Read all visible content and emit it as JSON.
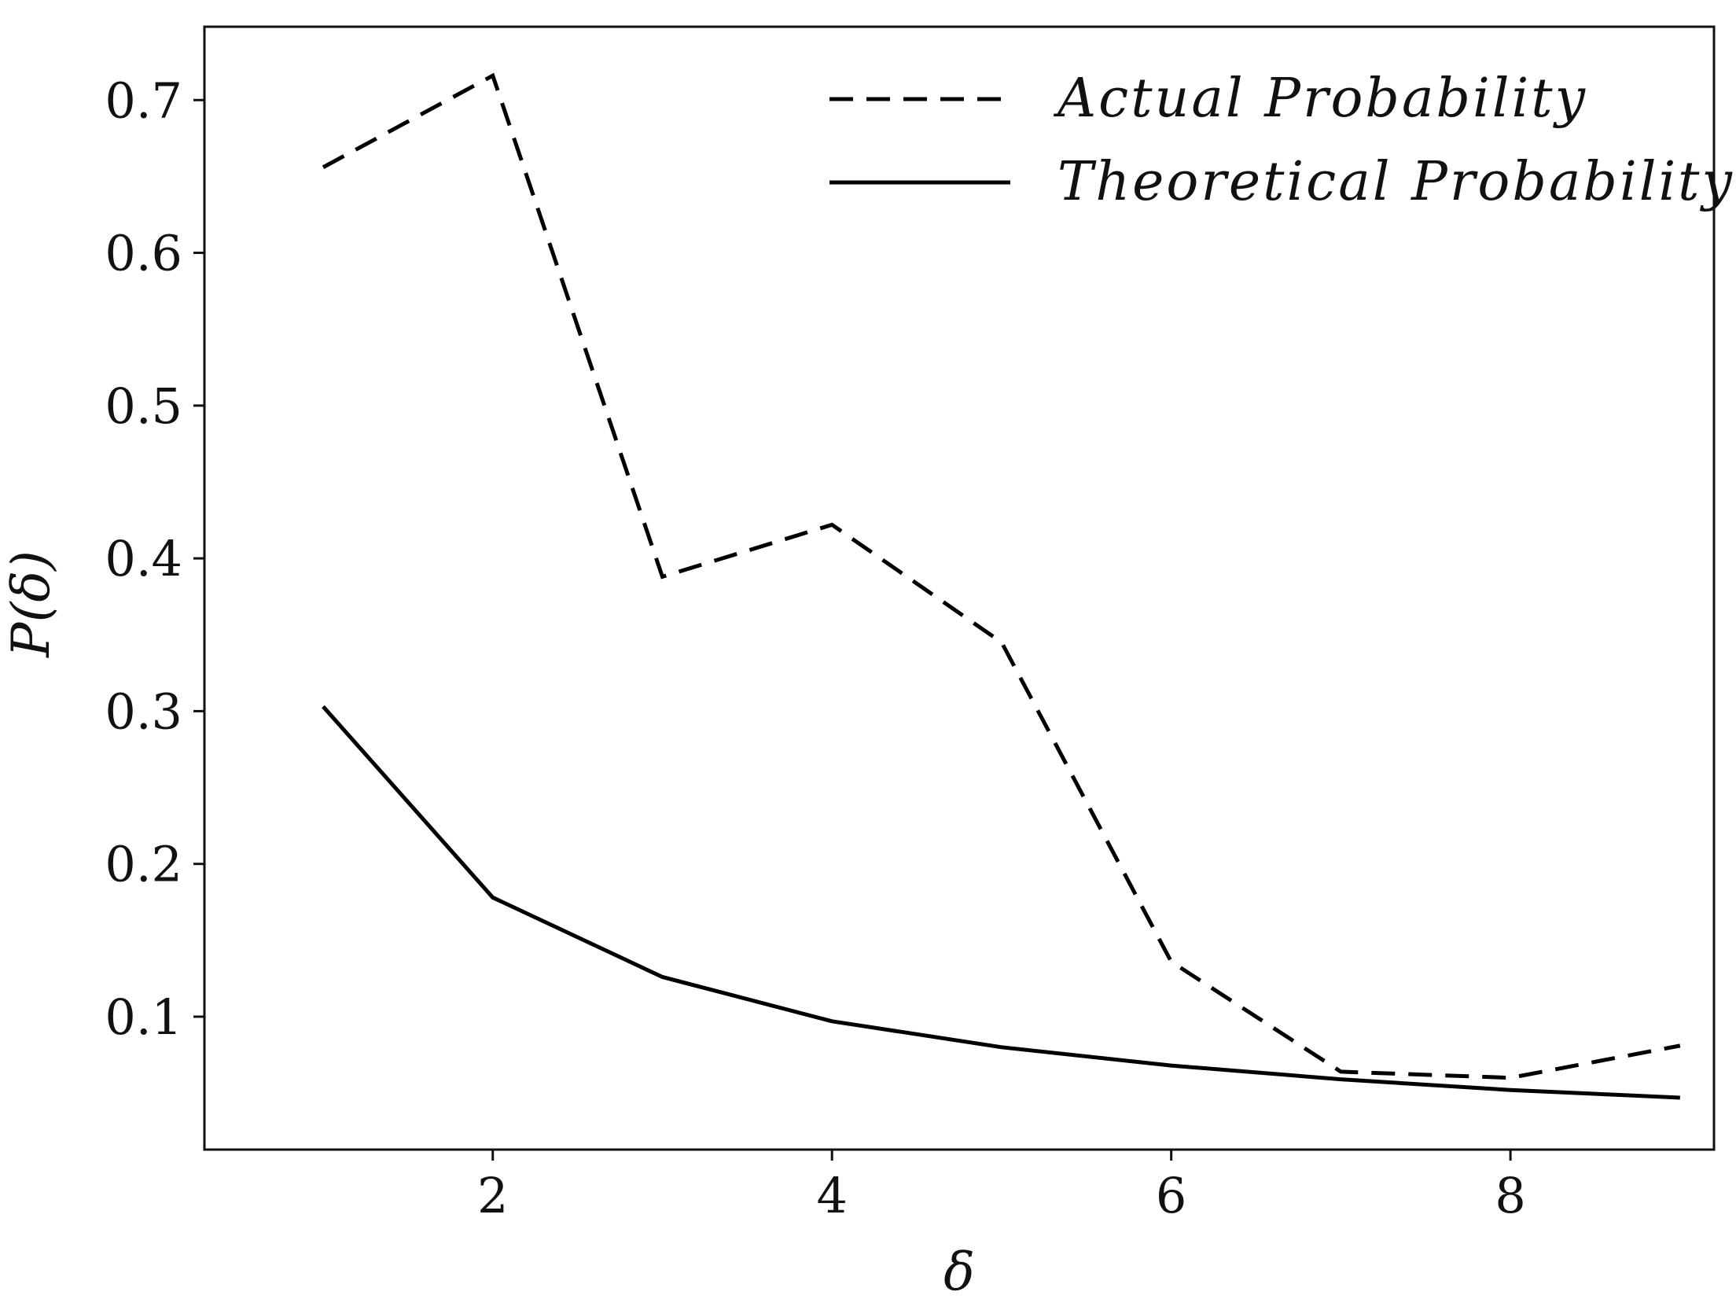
{
  "chart_data": {
    "type": "line",
    "title": "",
    "xlabel": "δ",
    "ylabel": "P(δ)",
    "xlim": [
      0.3,
      9.2
    ],
    "ylim": [
      0.013,
      0.748
    ],
    "x_ticks": [
      2,
      4,
      6,
      8
    ],
    "y_ticks": [
      0.1,
      0.2,
      0.3,
      0.4,
      0.5,
      0.6,
      0.7
    ],
    "x_tick_labels": [
      "2",
      "4",
      "6",
      "8"
    ],
    "y_tick_labels": [
      "0.1",
      "0.2",
      "0.3",
      "0.4",
      "0.5",
      "0.6",
      "0.7"
    ],
    "grid": false,
    "legend_position": "top-right",
    "series": [
      {
        "name": "Actual Probability",
        "style": "dashed",
        "color": "#000000",
        "x": [
          1,
          2,
          3,
          4,
          5,
          6,
          7,
          8,
          9
        ],
        "y": [
          0.656,
          0.716,
          0.388,
          0.422,
          0.345,
          0.136,
          0.064,
          0.06,
          0.081
        ]
      },
      {
        "name": "Theoretical Probability",
        "style": "solid",
        "color": "#000000",
        "x": [
          1,
          2,
          3,
          4,
          5,
          6,
          7,
          8,
          9
        ],
        "y": [
          0.303,
          0.178,
          0.126,
          0.097,
          0.08,
          0.068,
          0.059,
          0.052,
          0.047
        ]
      }
    ]
  }
}
